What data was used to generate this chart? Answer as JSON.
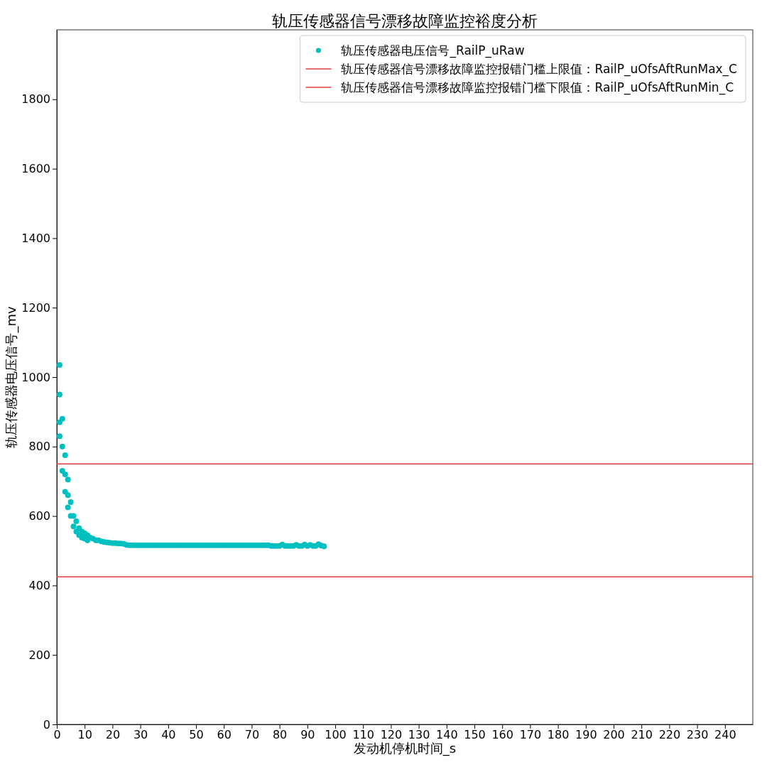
{
  "chart_data": {
    "type": "scatter",
    "title": "轨压传感器信号漂移故障监控裕度分析",
    "xlabel": "发动机停机时间_s",
    "ylabel": "轨压传感器电压信号_mv",
    "xlim": [
      0,
      250
    ],
    "xticks": [
      0,
      10,
      20,
      30,
      40,
      50,
      60,
      70,
      80,
      90,
      100,
      110,
      120,
      130,
      140,
      150,
      160,
      170,
      180,
      190,
      200,
      210,
      220,
      230,
      240
    ],
    "ylim": [
      0,
      2000
    ],
    "yticks": [
      0,
      200,
      400,
      600,
      800,
      1000,
      1200,
      1400,
      1600,
      1800
    ],
    "grid": false,
    "legend": "top right",
    "marker": "circle",
    "series": [
      {
        "name": "轨压传感器电压信号_RailP_uRaw",
        "color": "#00bfbf",
        "x": [
          1,
          1,
          1,
          1,
          2,
          2,
          2,
          3,
          3,
          3,
          4,
          4,
          4,
          5,
          5,
          6,
          6,
          7,
          7,
          8,
          8,
          9,
          9,
          10,
          10,
          11,
          11,
          12,
          13,
          14,
          15,
          16,
          17,
          18,
          19,
          20,
          21,
          22,
          23,
          24,
          25,
          26,
          27,
          28,
          29,
          30,
          31,
          32,
          33,
          34,
          35,
          36,
          37,
          38,
          39,
          40,
          41,
          42,
          43,
          44,
          45,
          46,
          47,
          48,
          49,
          50,
          51,
          52,
          53,
          54,
          55,
          56,
          57,
          58,
          59,
          60,
          61,
          62,
          63,
          64,
          65,
          66,
          67,
          68,
          69,
          70,
          71,
          72,
          73,
          74,
          75,
          76,
          77,
          78,
          79,
          80,
          81,
          82,
          83,
          84,
          85,
          86,
          87,
          88,
          89,
          90,
          91,
          92,
          93,
          94,
          95,
          96
        ],
        "values": [
          1035,
          950,
          870,
          830,
          880,
          800,
          730,
          775,
          720,
          670,
          705,
          660,
          625,
          640,
          600,
          600,
          570,
          585,
          555,
          565,
          545,
          555,
          538,
          550,
          535,
          545,
          530,
          538,
          535,
          530,
          530,
          527,
          525,
          524,
          523,
          522,
          522,
          521,
          521,
          520,
          517,
          516,
          516,
          516,
          516,
          516,
          516,
          516,
          516,
          516,
          516,
          516,
          516,
          516,
          516,
          516,
          516,
          516,
          516,
          516,
          516,
          516,
          516,
          516,
          516,
          516,
          516,
          516,
          516,
          516,
          516,
          516,
          516,
          516,
          516,
          516,
          516,
          516,
          516,
          516,
          516,
          516,
          516,
          516,
          516,
          516,
          516,
          516,
          516,
          516,
          516,
          516,
          514,
          514,
          514,
          514,
          518,
          514,
          514,
          514,
          514,
          517,
          514,
          514,
          518,
          514,
          517,
          514,
          514,
          519,
          515,
          513
        ]
      }
    ],
    "ref_lines": [
      {
        "axis": "y",
        "value": 750,
        "label": "轨压传感器信号漂移故障监控报错门槛上限值：RailP_uOfsAftRunMax_C",
        "color": "#e04040",
        "line_style": "solid"
      },
      {
        "axis": "y",
        "value": 425,
        "label": "轨压传感器信号漂移故障监控报错门槛下限值：RailP_uOfsAftRunMin_C",
        "color": "#e04040",
        "line_style": "solid"
      }
    ]
  }
}
